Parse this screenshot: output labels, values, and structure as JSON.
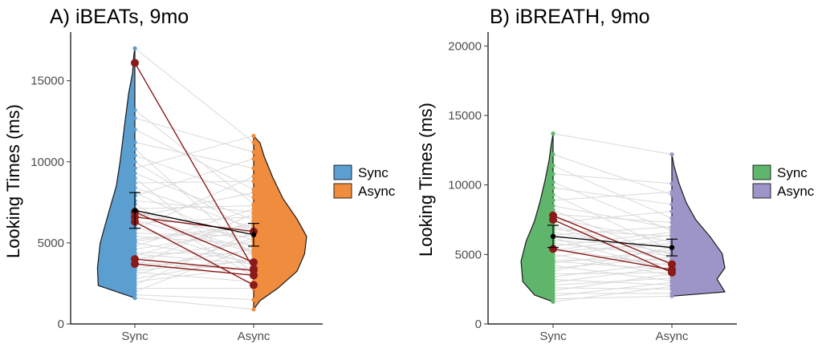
{
  "chart_data": [
    {
      "type": "violin",
      "title": "A) iBEATs, 9mo",
      "xlabel": "",
      "ylabel": "Looking Times (ms)",
      "categories": [
        "Sync",
        "Async"
      ],
      "ylim": [
        0,
        18000
      ],
      "yticks": [
        0,
        5000,
        10000,
        15000
      ],
      "grid": false,
      "legend": {
        "position": "right",
        "entries": [
          "Sync",
          "Async"
        ]
      },
      "colors": {
        "Sync": "#5b9ed0",
        "Async": "#f08c3e",
        "highlight": "#8b1a1a",
        "pair_line": "#d9d9d9"
      },
      "violin_range": {
        "Sync": [
          1600,
          17000
        ],
        "Async": [
          900,
          11600
        ]
      },
      "means": {
        "Sync": 7000,
        "Async": 5500
      },
      "error_bars": {
        "Sync": [
          5900,
          8100
        ],
        "Async": [
          4800,
          6200
        ]
      },
      "highlighted_pairs": [
        [
          16100,
          3400
        ],
        [
          6600,
          5700
        ],
        [
          6300,
          2400
        ],
        [
          4000,
          3300
        ],
        [
          3700,
          3000
        ],
        [
          6900,
          3800
        ]
      ],
      "background_pairs": [
        [
          17000,
          11200
        ],
        [
          13200,
          7400
        ],
        [
          12700,
          10600
        ],
        [
          12000,
          8300
        ],
        [
          11200,
          9600
        ],
        [
          10800,
          4200
        ],
        [
          10400,
          7800
        ],
        [
          10000,
          5600
        ],
        [
          9600,
          11600
        ],
        [
          9300,
          6400
        ],
        [
          9000,
          3100
        ],
        [
          8700,
          8800
        ],
        [
          8400,
          5900
        ],
        [
          8100,
          4700
        ],
        [
          7900,
          10200
        ],
        [
          7600,
          6900
        ],
        [
          7400,
          2900
        ],
        [
          7100,
          7300
        ],
        [
          6900,
          5200
        ],
        [
          6600,
          8100
        ],
        [
          6400,
          4400
        ],
        [
          6200,
          6600
        ],
        [
          6000,
          3600
        ],
        [
          5800,
          9100
        ],
        [
          5600,
          5400
        ],
        [
          5400,
          4900
        ],
        [
          5200,
          6100
        ],
        [
          5000,
          3800
        ],
        [
          4800,
          7100
        ],
        [
          4600,
          5800
        ],
        [
          4400,
          4300
        ],
        [
          4200,
          6300
        ],
        [
          4000,
          5100
        ],
        [
          3800,
          3300
        ],
        [
          3600,
          6800
        ],
        [
          3400,
          4600
        ],
        [
          3200,
          2600
        ],
        [
          3000,
          5300
        ],
        [
          2800,
          4000
        ],
        [
          2600,
          3500
        ],
        [
          2400,
          5700
        ],
        [
          2200,
          2200
        ],
        [
          2000,
          4800
        ],
        [
          1800,
          1500
        ],
        [
          1600,
          900
        ],
        [
          3300,
          3900
        ],
        [
          6700,
          4500
        ],
        [
          5100,
          6000
        ],
        [
          4300,
          3700
        ]
      ]
    },
    {
      "type": "violin",
      "title": "B) iBREATH, 9mo",
      "xlabel": "",
      "ylabel": "Looking Times (ms)",
      "categories": [
        "Sync",
        "Async"
      ],
      "ylim": [
        0,
        21000
      ],
      "yticks": [
        0,
        5000,
        10000,
        15000,
        20000
      ],
      "grid": false,
      "legend": {
        "position": "right",
        "entries": [
          "Sync",
          "Async"
        ]
      },
      "colors": {
        "Sync": "#5fb56b",
        "Async": "#9d95c8",
        "highlight": "#8b1a1a",
        "pair_line": "#d9d9d9"
      },
      "violin_range": {
        "Sync": [
          1600,
          13700
        ],
        "Async": [
          2000,
          12200
        ]
      },
      "means": {
        "Sync": 6300,
        "Async": 5500
      },
      "error_bars": {
        "Sync": [
          5500,
          7100
        ],
        "Async": [
          4900,
          6100
        ]
      },
      "highlighted_pairs": [
        [
          7800,
          4300
        ],
        [
          7500,
          3700
        ],
        [
          5400,
          3900
        ]
      ],
      "background_pairs": [
        [
          13700,
          12200
        ],
        [
          12200,
          9300
        ],
        [
          11400,
          7600
        ],
        [
          10800,
          10100
        ],
        [
          10200,
          6700
        ],
        [
          9800,
          8600
        ],
        [
          9300,
          5300
        ],
        [
          8900,
          9500
        ],
        [
          8500,
          6900
        ],
        [
          8200,
          4700
        ],
        [
          7900,
          7300
        ],
        [
          7600,
          5900
        ],
        [
          7300,
          8100
        ],
        [
          7000,
          4400
        ],
        [
          6800,
          6300
        ],
        [
          6600,
          5100
        ],
        [
          6400,
          7000
        ],
        [
          6200,
          3800
        ],
        [
          6000,
          5600
        ],
        [
          5800,
          4900
        ],
        [
          5600,
          6600
        ],
        [
          5400,
          4200
        ],
        [
          5200,
          5800
        ],
        [
          5000,
          3500
        ],
        [
          4800,
          6100
        ],
        [
          4600,
          4600
        ],
        [
          4400,
          5300
        ],
        [
          4200,
          3100
        ],
        [
          4000,
          4800
        ],
        [
          3800,
          5500
        ],
        [
          3600,
          3700
        ],
        [
          3400,
          4400
        ],
        [
          3200,
          2800
        ],
        [
          3000,
          4100
        ],
        [
          2800,
          3300
        ],
        [
          2600,
          2500
        ],
        [
          2400,
          3600
        ],
        [
          2200,
          2200
        ],
        [
          2000,
          3000
        ],
        [
          1800,
          2000
        ],
        [
          1600,
          2700
        ],
        [
          7100,
          5000
        ],
        [
          5300,
          6400
        ],
        [
          4500,
          3900
        ]
      ]
    }
  ]
}
